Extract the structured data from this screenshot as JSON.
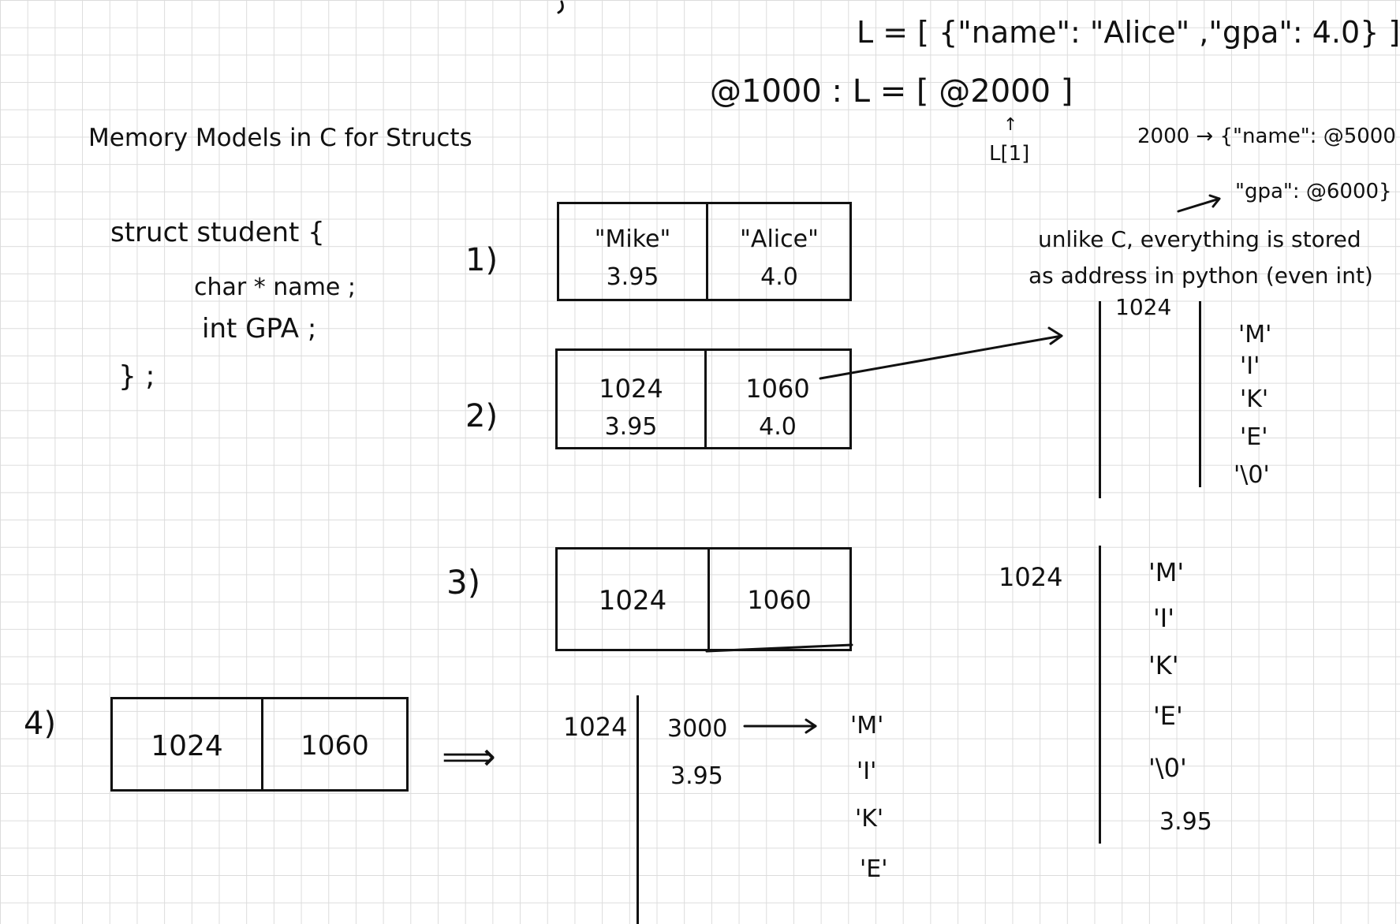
{
  "title": "Memory Models in C for Structs",
  "struct_code": {
    "line1": "struct student {",
    "line2": "char * name ;",
    "line3": "int GPA ;",
    "line4": "} ;"
  },
  "python": {
    "list_literal": "L = [ {\"name\": \"Alice\" ,\"gpa\": 4.0} ]",
    "addr_line": "@1000 : L = [ @2000 ]",
    "index_label": "L[1]",
    "dict_line1": "2000 → {\"name\": @5000",
    "dict_line2": "\"gpa\": @6000}",
    "note_line1": "unlike C, everything is stored",
    "note_line2": "as address in python (even int)"
  },
  "models": [
    {
      "label": "1)",
      "cells": [
        {
          "top": "\"Mike\"",
          "bottom": "3.95"
        },
        {
          "top": "\"Alice\"",
          "bottom": "4.0"
        }
      ]
    },
    {
      "label": "2)",
      "cells": [
        {
          "top": "1024",
          "bottom": "3.95"
        },
        {
          "top": "1060",
          "bottom": "4.0"
        }
      ]
    },
    {
      "label": "3)",
      "cells": [
        {
          "top": "1024"
        },
        {
          "top": "1060"
        }
      ]
    },
    {
      "label": "4)",
      "cells": [
        {
          "top": "1024"
        },
        {
          "top": "1060"
        }
      ]
    }
  ],
  "memory_2": {
    "address": "1024",
    "chars": [
      "'M'",
      "'I'",
      "'K'",
      "'E'",
      "'\\0'"
    ]
  },
  "memory_3": {
    "address": "1024",
    "chars": [
      "'M'",
      "'I'",
      "'K'",
      "'E'",
      "'\\0'",
      "3.95"
    ]
  },
  "memory_4": {
    "implies": "⟹",
    "address": "1024",
    "pointer": "3000",
    "gpa": "3.95",
    "chars": [
      "'M'",
      "'I'",
      "'K'",
      "'E'"
    ]
  },
  "colors": {
    "ink": "#111111",
    "grid": "#dcdcdc",
    "paper": "#ffffff"
  }
}
